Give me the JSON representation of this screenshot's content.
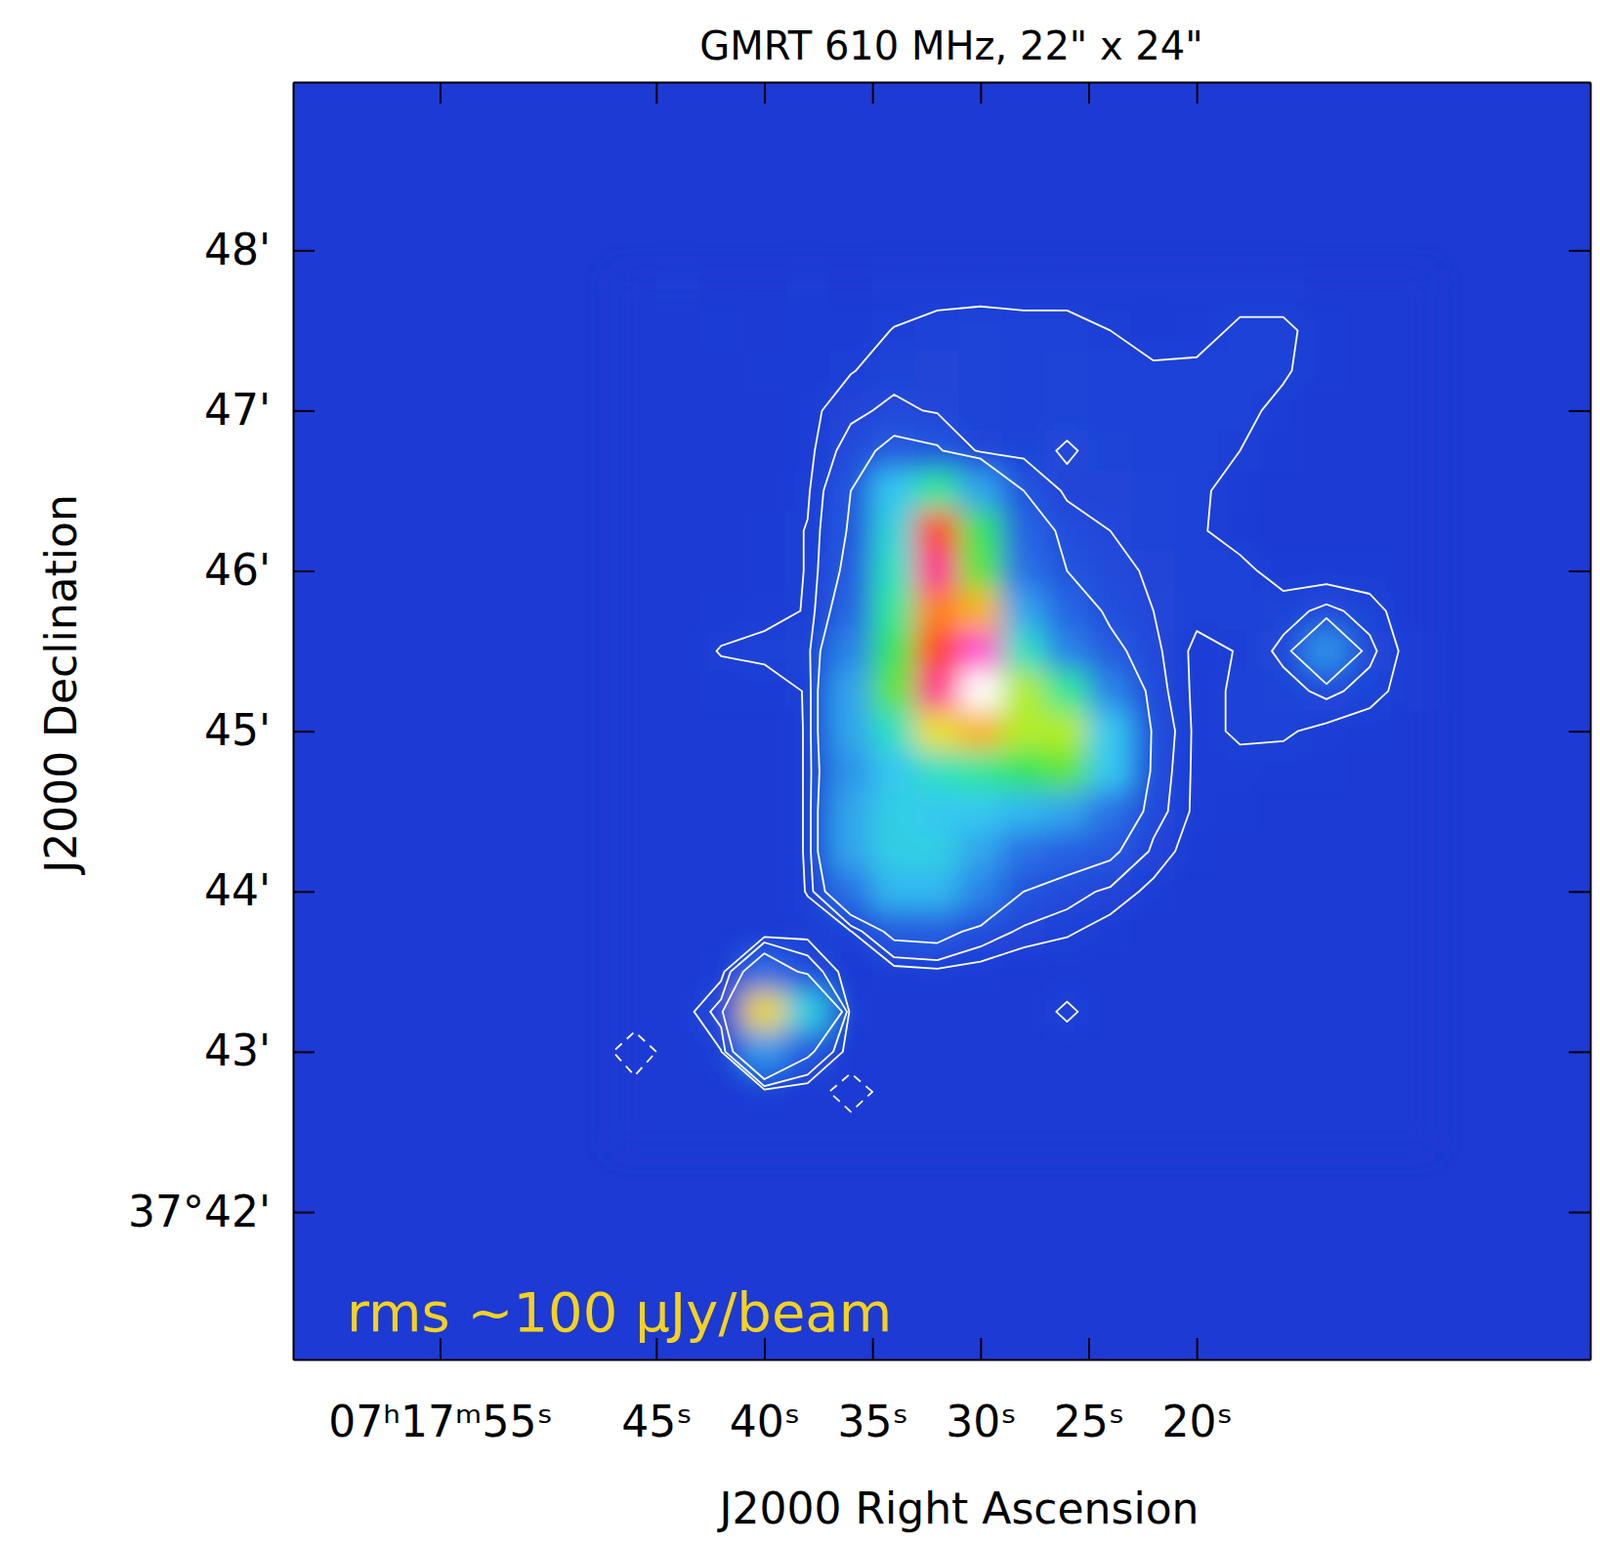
{
  "chart_data": {
    "type": "heatmap",
    "title": "GMRT 610 MHz, 22\" x 24\"",
    "x_label": "J2000 Right Ascension",
    "y_label": "J2000 Declination",
    "annotation": "rms ~100 μJy/beam",
    "xlim": [
      61.8,
      1.8
    ],
    "ylim": [
      41.08,
      49.05
    ],
    "xticks": [
      {
        "value": 55,
        "label": "07ʰ17ᵐ55ˢ"
      },
      {
        "value": 45,
        "label": "45ˢ"
      },
      {
        "value": 40,
        "label": "40ˢ"
      },
      {
        "value": 35,
        "label": "35ˢ"
      },
      {
        "value": 30,
        "label": "30ˢ"
      },
      {
        "value": 25,
        "label": "25ˢ"
      },
      {
        "value": 20,
        "label": "20ˢ"
      }
    ],
    "yticks": [
      {
        "value": 42,
        "label": "37°42'"
      },
      {
        "value": 43,
        "label": "43'"
      },
      {
        "value": 44,
        "label": "44'"
      },
      {
        "value": 45,
        "label": "45'"
      },
      {
        "value": 46,
        "label": "46'"
      },
      {
        "value": 47,
        "label": "47'"
      },
      {
        "value": 48,
        "label": "48'"
      }
    ],
    "x": [
      46,
      44,
      42,
      40,
      38,
      36,
      34,
      32,
      30,
      28,
      26,
      24,
      22,
      20,
      18,
      16,
      14,
      12,
      10
    ],
    "y": [
      47.75,
      47.5,
      47.25,
      47,
      46.75,
      46.5,
      46.25,
      46,
      45.75,
      45.5,
      45.25,
      45,
      44.75,
      44.5,
      44.25,
      44,
      43.75,
      43.5,
      43.25,
      43,
      42.75,
      42.5
    ],
    "cells": [
      [
        0,
        0.1,
        0,
        0,
        0.1,
        0,
        0.1,
        0.2,
        0.2,
        0.2,
        0.2,
        0.1,
        0.1,
        0.1,
        0.2,
        0.1,
        0,
        0,
        0
      ],
      [
        0,
        0,
        0.1,
        0,
        0.1,
        0.1,
        0.32,
        0.4,
        0.45,
        0.4,
        0.4,
        0.3,
        0.15,
        0.2,
        0.35,
        0.4,
        0.1,
        0,
        0
      ],
      [
        0,
        0,
        0,
        0.1,
        0.1,
        0.28,
        0.45,
        0.5,
        0.45,
        0.4,
        0.45,
        0.35,
        0.35,
        0.35,
        0.4,
        0.35,
        0.1,
        0,
        0
      ],
      [
        0,
        0,
        0,
        0.05,
        0.2,
        0.5,
        0.7,
        0.55,
        0.45,
        0.4,
        0.45,
        0.4,
        0.35,
        0.35,
        0.4,
        0.2,
        0.05,
        0,
        0
      ],
      [
        0,
        0,
        0,
        0,
        0.2,
        0.8,
        1.5,
        1.3,
        0.5,
        0.45,
        0.65,
        0.45,
        0.4,
        0.35,
        0.3,
        0.1,
        0,
        0,
        0
      ],
      [
        0,
        0,
        0,
        0.05,
        0.25,
        1.2,
        5,
        8,
        4,
        1.2,
        0.5,
        0.5,
        0.45,
        0.35,
        0.2,
        0.05,
        0,
        0,
        0
      ],
      [
        0,
        0,
        0.05,
        0.1,
        0.32,
        1.3,
        6,
        15,
        9,
        2,
        0.9,
        0.6,
        0.45,
        0.35,
        0.15,
        0,
        0,
        0,
        0
      ],
      [
        0,
        0,
        0,
        0.1,
        0.32,
        1.5,
        7,
        17,
        10,
        2.5,
        1.2,
        0.8,
        0.5,
        0.4,
        0.4,
        0.15,
        0.1,
        0.1,
        0
      ],
      [
        0,
        0,
        0.1,
        0.2,
        0.32,
        2,
        8,
        14,
        13,
        4,
        2,
        1,
        0.6,
        0.4,
        0.4,
        0.45,
        0.7,
        0.45,
        0.05
      ],
      [
        0,
        0.05,
        0.33,
        0.4,
        0.45,
        3,
        9,
        15,
        18,
        7,
        3,
        1.5,
        0.7,
        0.2,
        0.32,
        0.7,
        3.5,
        0.7,
        0.1
      ],
      [
        0,
        0,
        0.1,
        0.1,
        0.33,
        4,
        10,
        17,
        20,
        11,
        8,
        3,
        0.8,
        0.2,
        0.35,
        0.45,
        0.7,
        0.45,
        0.1
      ],
      [
        0,
        0,
        0,
        0.05,
        0.33,
        4,
        7,
        12,
        13,
        11,
        11,
        5,
        1,
        0.2,
        0.35,
        0.35,
        0.2,
        0.1,
        0
      ],
      [
        0,
        0,
        0,
        0.05,
        0.33,
        3.5,
        5,
        7,
        8,
        9,
        10,
        5,
        0.9,
        0.2,
        0.2,
        0.15,
        0.1,
        0,
        0
      ],
      [
        0,
        0,
        0,
        0.05,
        0.33,
        4,
        5.5,
        5,
        5,
        4.5,
        4,
        2.5,
        0.8,
        0.2,
        0.1,
        0,
        0,
        0,
        0
      ],
      [
        0,
        0,
        0,
        0.05,
        0.33,
        4,
        5.5,
        5.5,
        4,
        2.5,
        1.8,
        1.4,
        0.5,
        0.1,
        0,
        0,
        0,
        0,
        0
      ],
      [
        0,
        0,
        0,
        0,
        0.32,
        2.5,
        4.5,
        4.5,
        3,
        1.2,
        0.8,
        0.5,
        0.2,
        0,
        0,
        0,
        0,
        0,
        0
      ],
      [
        0,
        0,
        0,
        0,
        0.15,
        0.28,
        1.5,
        1.6,
        0.9,
        0.5,
        0.35,
        0.15,
        0,
        0,
        0,
        0,
        0,
        0,
        0
      ],
      [
        0,
        0,
        0.15,
        2.2,
        0.9,
        0.05,
        0.1,
        0.2,
        0.1,
        0,
        0,
        0,
        0,
        0,
        0,
        0,
        0,
        0,
        0
      ],
      [
        0,
        0,
        0.8,
        12.2,
        5.6,
        0.1,
        0,
        0,
        0,
        0,
        0.4,
        0,
        0,
        0,
        0,
        0,
        0,
        0,
        0
      ],
      [
        -0.6,
        0,
        0.28,
        3.6,
        1.4,
        0.05,
        0,
        0,
        0,
        0,
        0,
        0,
        0,
        0,
        0,
        0,
        0,
        0,
        0
      ],
      [
        -0.1,
        0,
        0,
        0.1,
        0,
        -0.6,
        0,
        0,
        0,
        0,
        0,
        0,
        0,
        0,
        0,
        0,
        0,
        0,
        0
      ],
      [
        0,
        0,
        0,
        0,
        0,
        0,
        0,
        0,
        0,
        0,
        0,
        0,
        0,
        0,
        0,
        0,
        0,
        0,
        0
      ]
    ],
    "color_range": [
      0,
      20
    ],
    "contour_levels": [
      -0.3,
      0.3,
      0.6,
      1.2
    ]
  }
}
